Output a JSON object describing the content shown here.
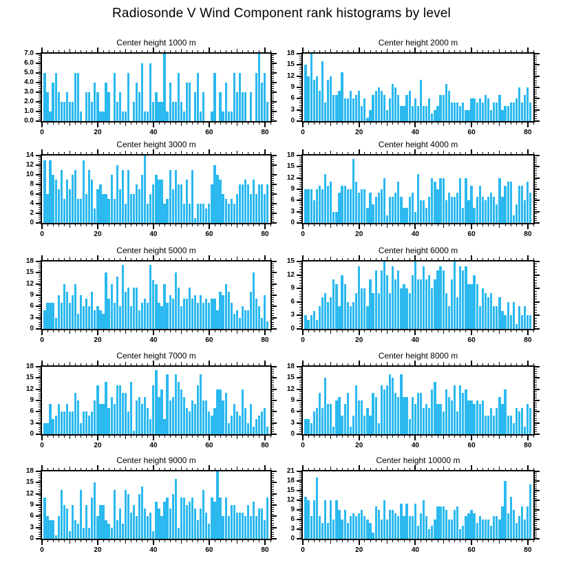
{
  "title": "Radiosonde V Wind Component rank histograms by level",
  "colors": {
    "bar": "#2bb9ef",
    "axis": "#000000",
    "background": "#ffffff"
  },
  "chart_data": [
    {
      "type": "bar",
      "title": "Center height 1000 m",
      "xlim": [
        0,
        82
      ],
      "x_ticks": [
        0,
        20,
        40,
        60,
        80
      ],
      "x_minor_step": 2,
      "ylim": [
        0,
        7
      ],
      "ytick_step": 1,
      "ydecimals": 1,
      "grid": false,
      "legend": "none",
      "values": [
        5,
        3,
        1,
        4,
        5,
        3,
        2,
        2,
        3,
        2,
        2,
        5,
        5,
        1,
        0,
        3,
        3,
        2,
        4,
        3,
        1,
        1,
        4,
        3,
        0,
        5,
        2,
        3,
        1,
        1,
        5,
        0,
        2,
        4,
        3,
        6,
        1,
        1,
        6,
        2,
        3,
        2,
        2,
        7,
        1,
        4,
        2,
        2,
        5,
        2,
        1,
        4,
        4,
        0,
        3,
        5,
        1,
        3,
        0,
        0,
        1,
        5,
        0,
        3,
        1,
        4,
        1,
        1,
        5,
        3,
        5,
        3,
        3,
        0,
        3,
        0,
        5,
        7,
        4,
        5,
        2
      ]
    },
    {
      "type": "bar",
      "title": "Center height 2000 m",
      "xlim": [
        0,
        82
      ],
      "x_ticks": [
        0,
        20,
        40,
        60,
        80
      ],
      "x_minor_step": 2,
      "ylim": [
        0,
        18
      ],
      "ytick_step": 3,
      "ydecimals": 0,
      "grid": false,
      "legend": "none",
      "values": [
        15,
        12,
        18,
        11,
        12,
        8,
        16,
        5,
        11,
        12,
        7,
        7,
        8,
        13,
        6,
        6,
        8,
        6,
        7,
        8,
        4,
        6,
        1,
        3,
        7,
        8,
        9,
        8,
        7,
        3,
        6,
        10,
        9,
        7,
        4,
        4,
        7,
        8,
        4,
        6,
        4,
        11,
        4,
        4,
        6,
        2,
        3,
        4,
        7,
        7,
        10,
        8,
        5,
        5,
        5,
        4,
        5,
        3,
        3,
        6,
        6,
        5,
        6,
        5,
        7,
        6,
        3,
        5,
        5,
        7,
        3,
        4,
        4,
        5,
        5,
        6,
        9,
        5,
        7,
        9,
        5
      ]
    },
    {
      "type": "bar",
      "title": "Center height 3000 m",
      "xlim": [
        0,
        82
      ],
      "x_ticks": [
        0,
        20,
        40,
        60,
        80
      ],
      "x_minor_step": 2,
      "ylim": [
        0,
        14
      ],
      "ytick_step": 2,
      "ydecimals": 0,
      "grid": false,
      "legend": "none",
      "values": [
        13,
        6,
        13,
        10,
        9,
        7,
        11,
        5,
        9,
        7,
        10,
        11,
        5,
        5,
        13,
        6,
        11,
        9,
        3,
        7,
        8,
        6,
        6,
        5,
        10,
        5,
        12,
        7,
        11,
        4,
        11,
        6,
        6,
        8,
        7,
        10,
        14,
        4,
        6,
        8,
        10,
        9,
        9,
        4,
        5,
        11,
        7,
        11,
        8,
        8,
        4,
        9,
        4,
        11,
        1,
        4,
        4,
        4,
        3,
        4,
        8,
        12,
        10,
        9,
        6,
        5,
        4,
        5,
        4,
        6,
        8,
        8,
        9,
        8,
        6,
        9,
        6,
        8,
        8,
        6,
        8
      ]
    },
    {
      "type": "bar",
      "title": "Center height 4000 m",
      "xlim": [
        0,
        82
      ],
      "x_ticks": [
        0,
        20,
        40,
        60,
        80
      ],
      "x_minor_step": 2,
      "ylim": [
        0,
        18
      ],
      "ytick_step": 3,
      "ydecimals": 0,
      "grid": false,
      "legend": "none",
      "values": [
        9,
        9,
        9,
        6,
        9,
        10,
        9,
        13,
        10,
        11,
        3,
        3,
        8,
        10,
        10,
        9,
        9,
        17,
        11,
        8,
        9,
        9,
        4,
        8,
        5,
        7,
        8,
        9,
        12,
        2,
        7,
        7,
        8,
        11,
        7,
        4,
        4,
        7,
        8,
        3,
        13,
        6,
        6,
        4,
        7,
        12,
        11,
        9,
        12,
        12,
        6,
        8,
        7,
        7,
        8,
        12,
        4,
        12,
        6,
        10,
        4,
        7,
        10,
        7,
        6,
        7,
        8,
        7,
        5,
        12,
        7,
        10,
        11,
        11,
        2,
        5,
        10,
        10,
        6,
        11,
        8
      ]
    },
    {
      "type": "bar",
      "title": "Center height 5000 m",
      "xlim": [
        0,
        82
      ],
      "x_ticks": [
        0,
        20,
        40,
        60,
        80
      ],
      "x_minor_step": 2,
      "ylim": [
        0,
        18
      ],
      "ytick_step": 3,
      "ydecimals": 0,
      "grid": false,
      "legend": "none",
      "values": [
        5,
        7,
        7,
        7,
        3,
        9,
        7,
        12,
        10,
        7,
        9,
        12,
        4,
        9,
        6,
        8,
        6,
        10,
        5,
        6,
        5,
        4,
        15,
        8,
        12,
        7,
        14,
        6,
        17,
        10,
        11,
        6,
        11,
        11,
        5,
        7,
        8,
        7,
        17,
        13,
        12,
        7,
        6,
        12,
        7,
        9,
        8,
        15,
        11,
        6,
        8,
        8,
        11,
        8,
        9,
        7,
        9,
        7,
        8,
        7,
        8,
        8,
        5,
        10,
        9,
        12,
        10,
        7,
        4,
        5,
        3,
        6,
        5,
        5,
        10,
        15,
        8,
        6,
        3,
        9,
        2
      ]
    },
    {
      "type": "bar",
      "title": "Center height 6000 m",
      "xlim": [
        0,
        82
      ],
      "x_ticks": [
        0,
        20,
        40,
        60,
        80
      ],
      "x_minor_step": 2,
      "ylim": [
        0,
        15
      ],
      "ytick_step": 3,
      "ydecimals": 0,
      "grid": false,
      "legend": "none",
      "values": [
        3,
        2,
        3,
        4,
        2,
        5,
        7,
        8,
        6,
        7,
        11,
        10,
        5,
        12,
        10,
        6,
        5,
        6,
        8,
        14,
        9,
        9,
        5,
        11,
        8,
        13,
        8,
        13,
        15,
        12,
        8,
        14,
        11,
        13,
        9,
        10,
        9,
        8,
        12,
        15,
        11,
        11,
        14,
        11,
        12,
        9,
        11,
        13,
        14,
        13,
        8,
        5,
        11,
        15,
        7,
        14,
        13,
        14,
        10,
        10,
        12,
        10,
        5,
        9,
        8,
        7,
        8,
        5,
        5,
        7,
        4,
        3,
        6,
        3,
        6,
        1,
        5,
        3,
        5,
        3,
        3
      ]
    },
    {
      "type": "bar",
      "title": "Center height 7000 m",
      "xlim": [
        0,
        82
      ],
      "x_ticks": [
        0,
        20,
        40,
        60,
        80
      ],
      "x_minor_step": 2,
      "ylim": [
        0,
        18
      ],
      "ytick_step": 3,
      "ydecimals": 0,
      "grid": false,
      "legend": "none",
      "values": [
        3,
        3,
        8,
        4,
        5,
        8,
        6,
        6,
        8,
        6,
        6,
        11,
        9,
        3,
        6,
        6,
        5,
        6,
        9,
        13,
        8,
        8,
        14,
        7,
        10,
        8,
        13,
        13,
        11,
        11,
        6,
        14,
        1,
        9,
        10,
        8,
        10,
        7,
        4,
        13,
        17,
        10,
        12,
        4,
        16,
        9,
        10,
        16,
        14,
        12,
        10,
        7,
        6,
        9,
        8,
        13,
        16,
        9,
        9,
        6,
        5,
        7,
        12,
        12,
        9,
        11,
        3,
        5,
        8,
        6,
        5,
        12,
        7,
        3,
        8,
        2,
        4,
        5,
        6,
        7,
        2
      ]
    },
    {
      "type": "bar",
      "title": "Center height 8000 m",
      "xlim": [
        0,
        82
      ],
      "x_ticks": [
        0,
        20,
        40,
        60,
        80
      ],
      "x_minor_step": 2,
      "ylim": [
        0,
        18
      ],
      "ytick_step": 3,
      "ydecimals": 0,
      "grid": false,
      "legend": "none",
      "values": [
        4,
        4,
        3,
        6,
        7,
        11,
        7,
        15,
        8,
        8,
        2,
        9,
        10,
        5,
        8,
        11,
        2,
        5,
        13,
        9,
        9,
        5,
        7,
        5,
        11,
        10,
        3,
        13,
        12,
        13,
        16,
        15,
        11,
        10,
        16,
        10,
        10,
        4,
        10,
        8,
        11,
        11,
        7,
        8,
        7,
        12,
        14,
        8,
        8,
        6,
        12,
        10,
        9,
        13,
        6,
        13,
        11,
        12,
        9,
        9,
        8,
        9,
        8,
        9,
        5,
        5,
        7,
        5,
        7,
        10,
        8,
        12,
        5,
        5,
        3,
        7,
        6,
        7,
        2,
        8,
        7
      ]
    },
    {
      "type": "bar",
      "title": "Center height 9000 m",
      "xlim": [
        0,
        82
      ],
      "x_ticks": [
        0,
        20,
        40,
        60,
        80
      ],
      "x_minor_step": 2,
      "ylim": [
        0,
        18
      ],
      "ytick_step": 3,
      "ydecimals": 0,
      "grid": false,
      "legend": "none",
      "values": [
        11,
        6,
        5,
        5,
        1,
        6,
        13,
        9,
        8,
        2,
        9,
        5,
        4,
        13,
        3,
        9,
        3,
        11,
        15,
        6,
        9,
        9,
        5,
        4,
        3,
        13,
        5,
        8,
        4,
        13,
        12,
        7,
        9,
        6,
        12,
        14,
        8,
        6,
        7,
        2,
        10,
        8,
        6,
        10,
        11,
        8,
        12,
        16,
        3,
        11,
        11,
        9,
        10,
        11,
        8,
        5,
        8,
        13,
        7,
        4,
        11,
        10,
        18,
        11,
        6,
        11,
        6,
        9,
        9,
        7,
        7,
        7,
        6,
        9,
        6,
        10,
        6,
        8,
        8,
        5,
        11
      ]
    },
    {
      "type": "bar",
      "title": "Center height 10000 m",
      "xlim": [
        0,
        82
      ],
      "x_ticks": [
        0,
        20,
        40,
        60,
        80
      ],
      "x_minor_step": 2,
      "ylim": [
        0,
        21
      ],
      "ytick_step": 3,
      "ydecimals": 0,
      "grid": false,
      "legend": "none",
      "values": [
        13,
        12,
        7,
        12,
        19,
        7,
        5,
        12,
        5,
        12,
        6,
        12,
        9,
        6,
        9,
        5,
        7,
        8,
        7,
        8,
        9,
        7,
        6,
        5,
        2,
        10,
        9,
        6,
        12,
        6,
        9,
        9,
        8,
        7,
        11,
        7,
        11,
        7,
        7,
        11,
        4,
        8,
        12,
        7,
        3,
        4,
        6,
        10,
        10,
        10,
        9,
        6,
        6,
        9,
        10,
        3,
        4,
        7,
        8,
        9,
        8,
        5,
        7,
        6,
        6,
        6,
        4,
        7,
        7,
        6,
        10,
        18,
        8,
        13,
        9,
        5,
        7,
        10,
        6,
        10,
        17
      ]
    }
  ]
}
